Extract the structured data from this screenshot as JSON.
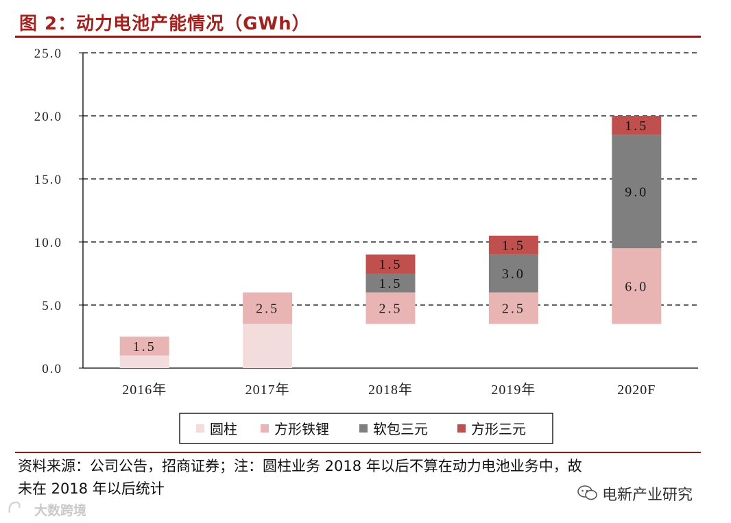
{
  "title": "图 2：动力电池产能情况（GWh）",
  "footnote": {
    "line1": "资料来源：公司公告，招商证券；注：圆柱业务 2018 年以后不算在动力电池业务中，故",
    "line2": "未在 2018 年以后统计"
  },
  "brand": "电新产业研究",
  "watermark": "大数跨境",
  "colors": {
    "title": "#a0221e",
    "rule": "#8b1a16",
    "cylinder": "#f2dcdc",
    "prismatic_lfp": "#e8b4b4",
    "pouch_ternary": "#7f7f7f",
    "prismatic_ternary": "#c0504d"
  },
  "chart_data": {
    "type": "bar",
    "stacked": true,
    "unit": "GWh",
    "categories": [
      "2016年",
      "2017年",
      "2018年",
      "2019年",
      "2020F"
    ],
    "ylim": [
      0,
      25
    ],
    "yticks": [
      "0.0",
      "5.0",
      "10.0",
      "15.0",
      "20.0",
      "25.0"
    ],
    "grid": "dashed horizontal",
    "legend_position": "bottom",
    "series": [
      {
        "name": "圆柱",
        "color": "#f2dcdc",
        "base": [
          0,
          0,
          3.5,
          3.5,
          3.5
        ],
        "values": [
          1.0,
          3.5,
          0,
          0,
          0
        ],
        "labels": [
          null,
          null,
          null,
          null,
          null
        ]
      },
      {
        "name": "方形铁锂",
        "color": "#e8b4b4",
        "values": [
          1.5,
          2.5,
          2.5,
          2.5,
          6.0
        ],
        "labels": [
          "1.5",
          "2.5",
          "2.5",
          "2.5",
          "6.0"
        ]
      },
      {
        "name": "软包三元",
        "color": "#7f7f7f",
        "values": [
          0,
          0,
          1.5,
          3.0,
          9.0
        ],
        "labels": [
          null,
          null,
          "1.5",
          "3.0",
          "9.0"
        ]
      },
      {
        "name": "方形三元",
        "color": "#c0504d",
        "values": [
          0,
          0,
          1.5,
          1.5,
          1.5
        ],
        "labels": [
          null,
          null,
          "1.5",
          "1.5",
          "1.5"
        ]
      }
    ]
  }
}
